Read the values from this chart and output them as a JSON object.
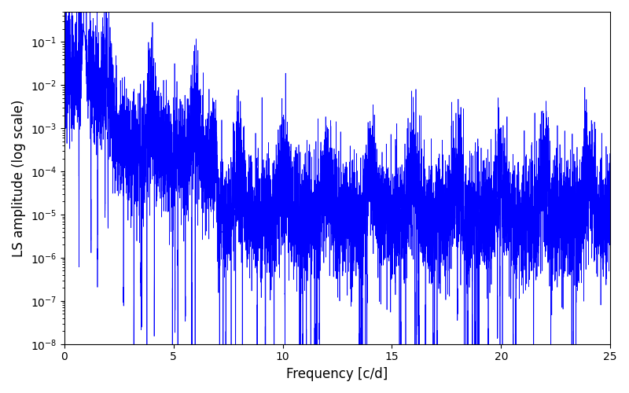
{
  "xlabel": "Frequency [c/d]",
  "ylabel": "LS amplitude (log scale)",
  "xlim": [
    0,
    25
  ],
  "ylim": [
    1e-08,
    0.5
  ],
  "line_color": "#0000ff",
  "line_width": 0.5,
  "background_color": "#ffffff",
  "figsize": [
    8.0,
    5.0
  ],
  "dpi": 100,
  "seed": 42,
  "n_points": 8000,
  "freq_max": 25.0,
  "xticks": [
    0,
    5,
    10,
    15,
    20,
    25
  ]
}
